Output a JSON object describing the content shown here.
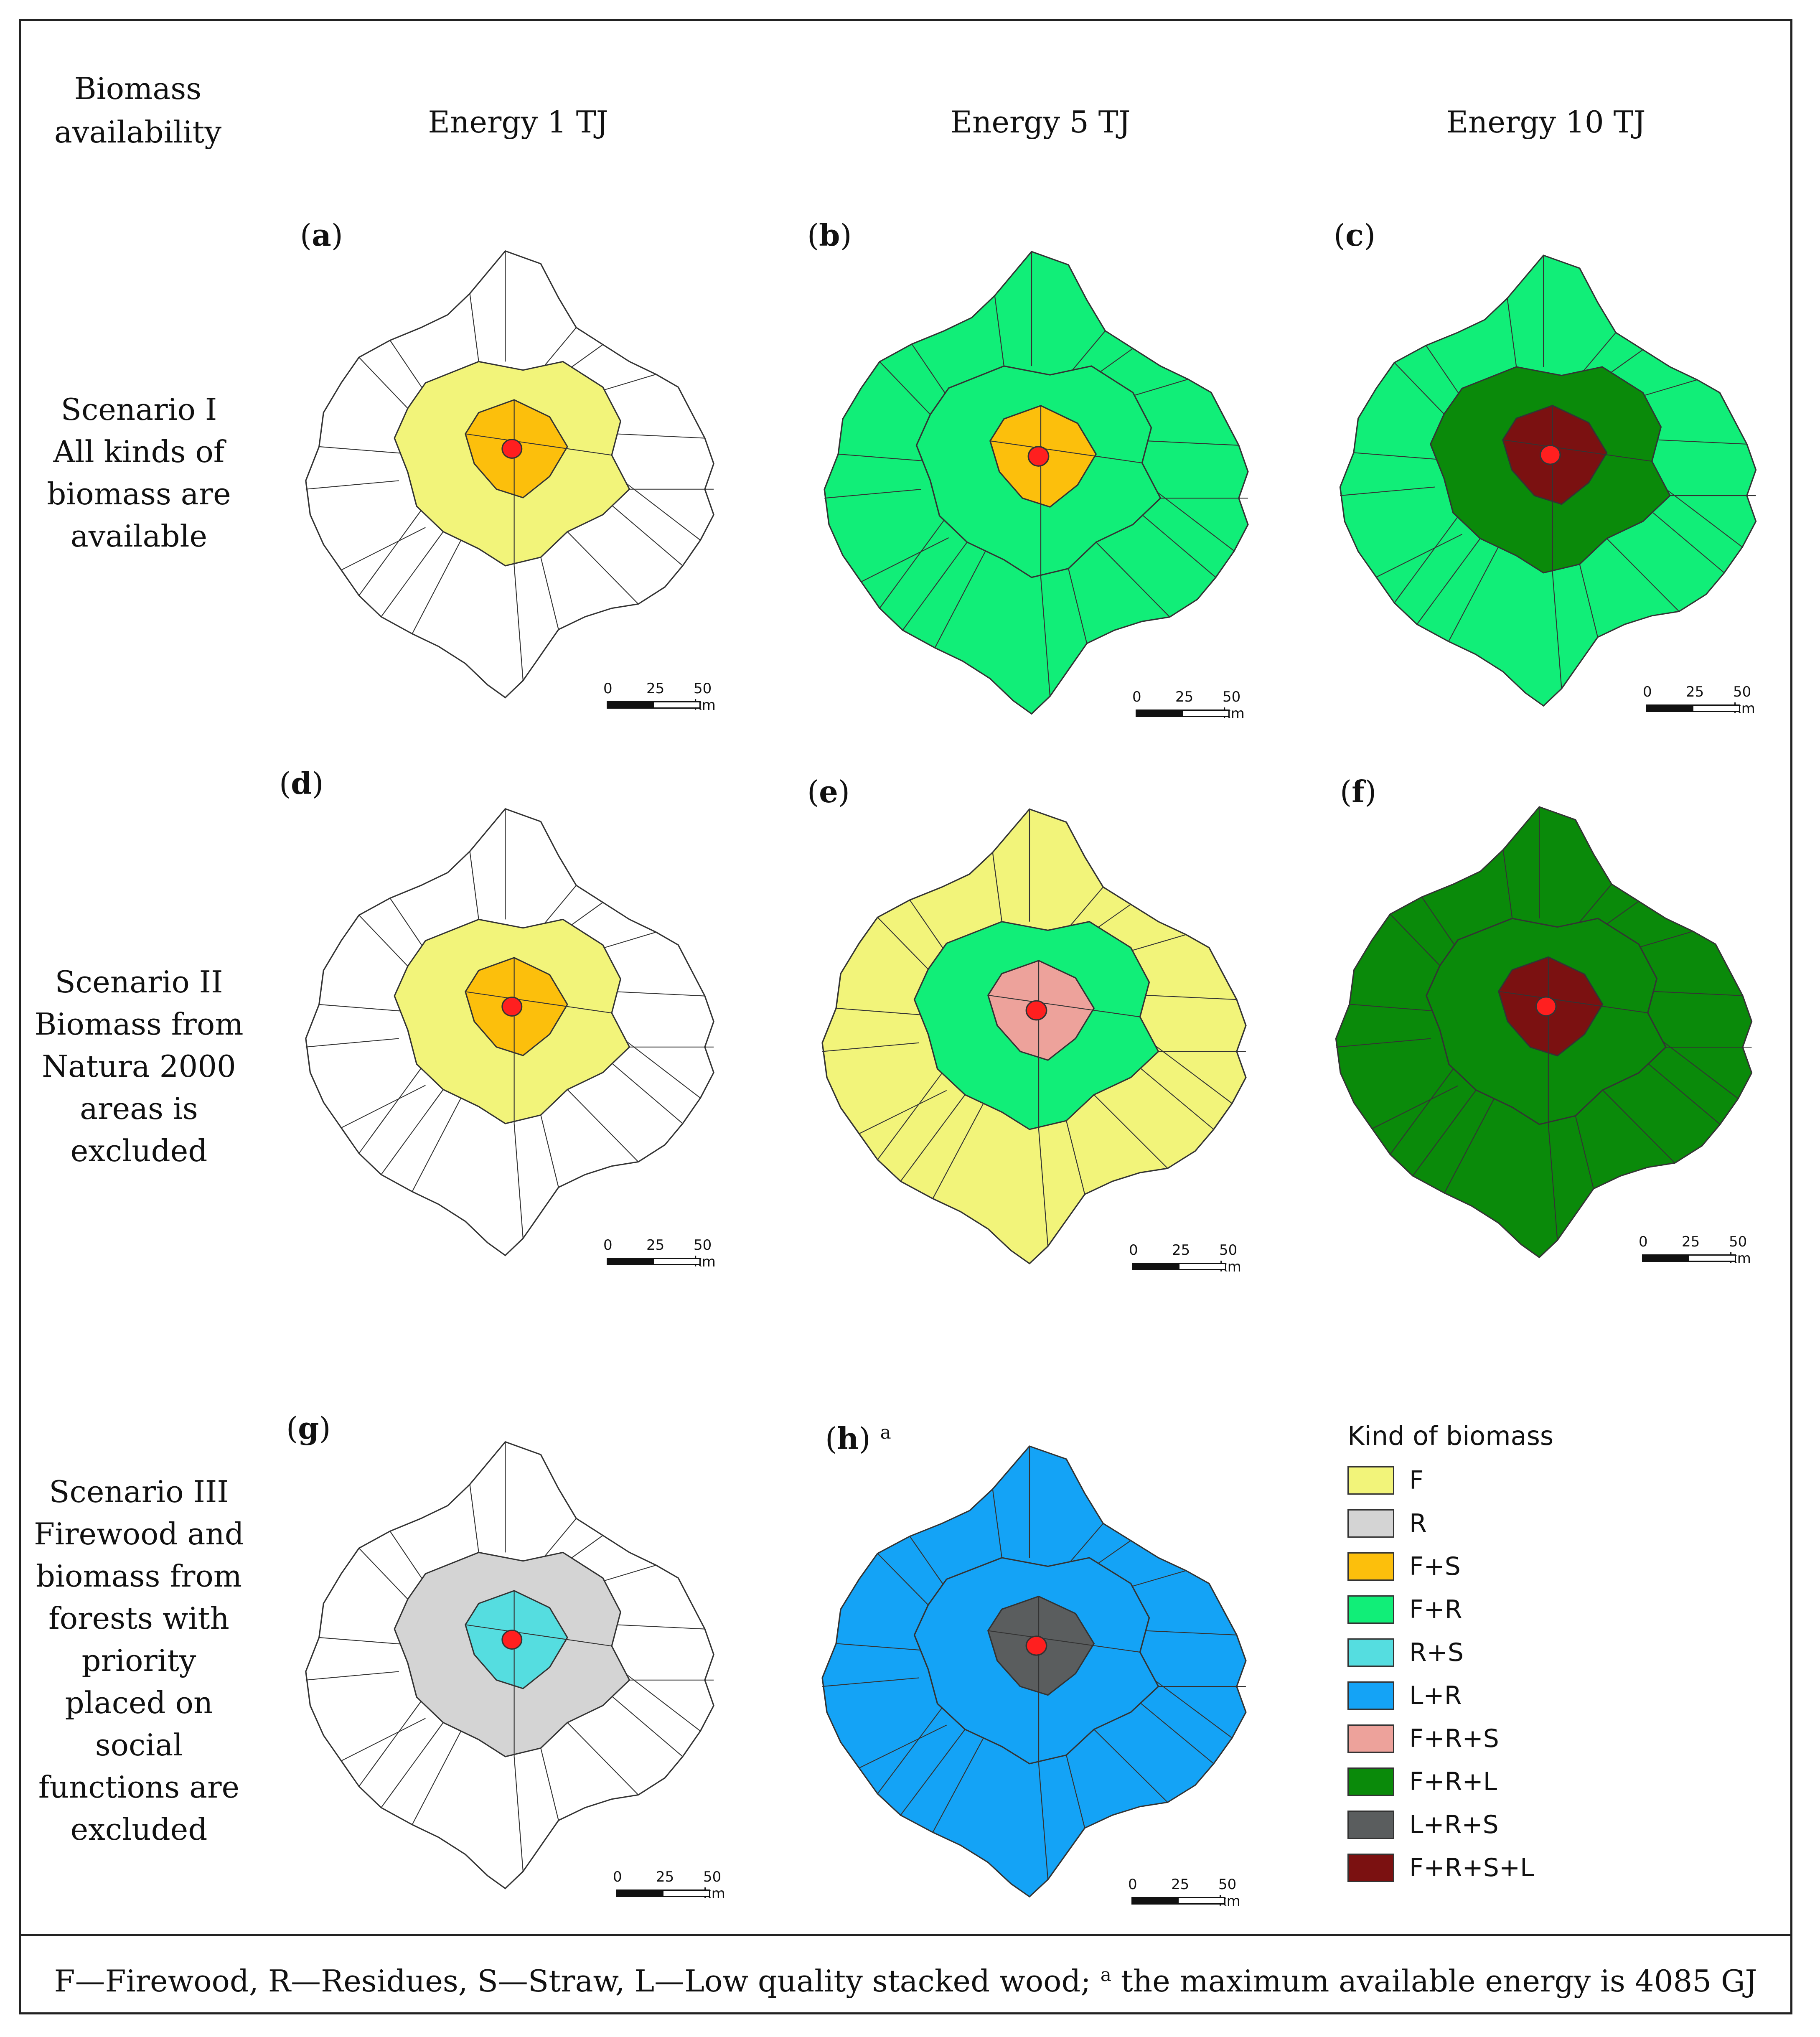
{
  "header": {
    "biomass_availability_line1": "Biomass",
    "biomass_availability_line2": "availability",
    "col1": "Energy 1 TJ",
    "col2": "Energy 5 TJ",
    "col3": "Energy 10 TJ"
  },
  "rows": [
    {
      "lines": [
        "Scenario I",
        "All kinds of",
        "biomass are",
        "available"
      ]
    },
    {
      "lines": [
        "Scenario II",
        "Biomass from",
        "Natura 2000",
        "areas is",
        "excluded"
      ]
    },
    {
      "lines": [
        "Scenario III",
        "Firewood and",
        "biomass from",
        "forests with",
        "priority",
        "placed on",
        "social",
        "functions are",
        "excluded"
      ]
    }
  ],
  "panels": [
    {
      "letter": "a",
      "base": "white",
      "outer": "F",
      "inner": "F+S",
      "footnote_mark": ""
    },
    {
      "letter": "b",
      "base": "F+R",
      "outer": "F+R",
      "inner": "F+S",
      "footnote_mark": ""
    },
    {
      "letter": "c",
      "base": "F+R",
      "outer": "F+R+L",
      "inner": "F+R+S+L",
      "footnote_mark": ""
    },
    {
      "letter": "d",
      "base": "white",
      "outer": "F",
      "inner": "F+S",
      "footnote_mark": ""
    },
    {
      "letter": "e",
      "base": "F",
      "outer": "F+R",
      "inner": "F+R+S",
      "footnote_mark": ""
    },
    {
      "letter": "f",
      "base": "F+R+L",
      "outer": "F+R+L",
      "inner": "F+R+S+L",
      "footnote_mark": ""
    },
    {
      "letter": "g",
      "base": "white",
      "outer": "R",
      "inner": "R+S",
      "footnote_mark": ""
    },
    {
      "letter": "h",
      "base": "L+R",
      "outer": "L+R",
      "inner": "L+R+S",
      "footnote_mark": "a"
    }
  ],
  "scale_bar": {
    "t0": "0",
    "t1": "25",
    "t2": "50 km"
  },
  "legend": {
    "title": "Kind of biomass",
    "items": [
      {
        "label": "F",
        "color": "#f2f47a"
      },
      {
        "label": "R",
        "color": "#d4d4d4"
      },
      {
        "label": "F+S",
        "color": "#fcbf0c"
      },
      {
        "label": "F+R",
        "color": "#11ee78"
      },
      {
        "label": "R+S",
        "color": "#55dde0"
      },
      {
        "label": "L+R",
        "color": "#14a3f6"
      },
      {
        "label": "F+R+S",
        "color": "#eda29b"
      },
      {
        "label": "F+R+L",
        "color": "#0a8a0a"
      },
      {
        "label": "L+R+S",
        "color": "#5a5d5e"
      },
      {
        "label": "F+R+S+L",
        "color": "#7b1111"
      }
    ]
  },
  "colors": {
    "white": "#ffffff",
    "center_point": "#ff1f1f",
    "boundary": "#333333"
  },
  "footnote": {
    "text": "F—Firewood, R—Residues, S—Straw, L—Low quality stacked wood; ",
    "mark": "a",
    "tail": " the maximum available energy is 4085 GJ"
  }
}
